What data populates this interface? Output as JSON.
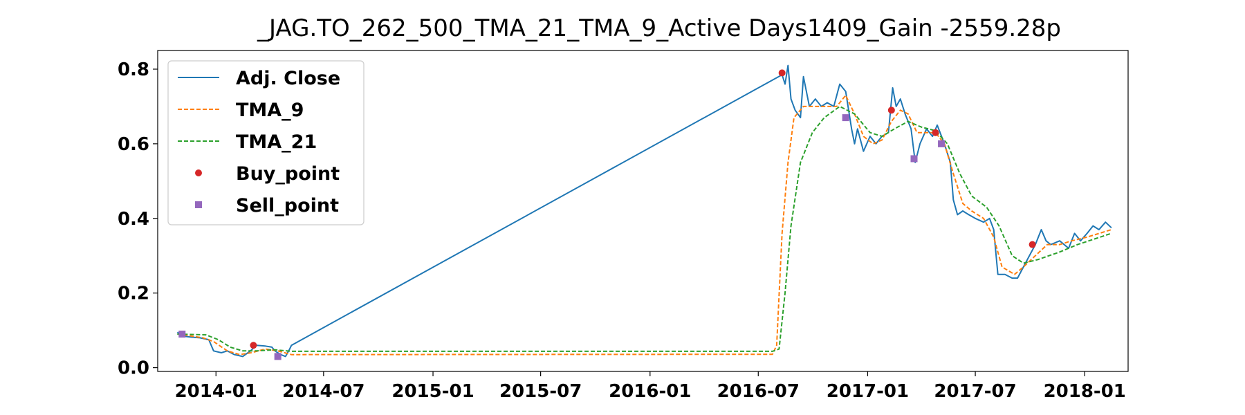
{
  "chart_data": {
    "type": "line",
    "title": "_JAG.TO_262_500_TMA_21_TMA_9_Active Days1409_Gain -2559.28p",
    "xlabel": "",
    "ylabel": "",
    "x_type": "date",
    "xlim": [
      "2013-09-25",
      "2018-03-15"
    ],
    "ylim": [
      -0.01,
      0.85
    ],
    "x_ticks": [
      "2014-01",
      "2014-07",
      "2015-01",
      "2015-07",
      "2016-01",
      "2016-07",
      "2017-01",
      "2017-07",
      "2018-01"
    ],
    "y_ticks": [
      0.0,
      0.2,
      0.4,
      0.6,
      0.8
    ],
    "grid": false,
    "legend_position": "top-left",
    "series": [
      {
        "name": "Adj. Close",
        "style": "solid",
        "color": "#1f77b4",
        "points": [
          [
            "2013-10-28",
            0.095
          ],
          [
            "2013-11-05",
            0.085
          ],
          [
            "2013-11-20",
            0.082
          ],
          [
            "2013-12-05",
            0.08
          ],
          [
            "2013-12-20",
            0.075
          ],
          [
            "2013-12-28",
            0.045
          ],
          [
            "2014-01-10",
            0.04
          ],
          [
            "2014-01-20",
            0.045
          ],
          [
            "2014-02-01",
            0.035
          ],
          [
            "2014-02-15",
            0.03
          ],
          [
            "2014-02-28",
            0.045
          ],
          [
            "2014-03-10",
            0.06
          ],
          [
            "2014-03-25",
            0.058
          ],
          [
            "2014-04-05",
            0.055
          ],
          [
            "2014-04-10",
            0.045
          ],
          [
            "2014-04-20",
            0.035
          ],
          [
            "2014-04-28",
            0.03
          ],
          [
            "2014-05-05",
            0.05
          ],
          [
            "2014-05-08",
            0.06
          ],
          [
            "2016-08-10",
            0.785
          ],
          [
            "2016-08-15",
            0.76
          ],
          [
            "2016-08-20",
            0.81
          ],
          [
            "2016-08-25",
            0.72
          ],
          [
            "2016-09-01",
            0.69
          ],
          [
            "2016-09-10",
            0.67
          ],
          [
            "2016-09-15",
            0.78
          ],
          [
            "2016-09-25",
            0.7
          ],
          [
            "2016-10-05",
            0.72
          ],
          [
            "2016-10-15",
            0.7
          ],
          [
            "2016-10-25",
            0.71
          ],
          [
            "2016-11-05",
            0.7
          ],
          [
            "2016-11-15",
            0.76
          ],
          [
            "2016-11-25",
            0.74
          ],
          [
            "2016-12-05",
            0.64
          ],
          [
            "2016-12-10",
            0.6
          ],
          [
            "2016-12-15",
            0.64
          ],
          [
            "2016-12-25",
            0.58
          ],
          [
            "2017-01-05",
            0.62
          ],
          [
            "2017-01-15",
            0.6
          ],
          [
            "2017-01-25",
            0.62
          ],
          [
            "2017-02-05",
            0.63
          ],
          [
            "2017-02-12",
            0.75
          ],
          [
            "2017-02-18",
            0.7
          ],
          [
            "2017-02-25",
            0.72
          ],
          [
            "2017-03-05",
            0.68
          ],
          [
            "2017-03-15",
            0.64
          ],
          [
            "2017-03-22",
            0.55
          ],
          [
            "2017-03-30",
            0.6
          ],
          [
            "2017-04-10",
            0.64
          ],
          [
            "2017-04-20",
            0.62
          ],
          [
            "2017-04-28",
            0.65
          ],
          [
            "2017-05-10",
            0.6
          ],
          [
            "2017-05-20",
            0.55
          ],
          [
            "2017-05-25",
            0.45
          ],
          [
            "2017-06-01",
            0.41
          ],
          [
            "2017-06-10",
            0.42
          ],
          [
            "2017-06-20",
            0.41
          ],
          [
            "2017-07-01",
            0.4
          ],
          [
            "2017-07-15",
            0.39
          ],
          [
            "2017-07-25",
            0.4
          ],
          [
            "2017-08-01",
            0.37
          ],
          [
            "2017-08-08",
            0.25
          ],
          [
            "2017-08-20",
            0.25
          ],
          [
            "2017-09-01",
            0.24
          ],
          [
            "2017-09-10",
            0.24
          ],
          [
            "2017-09-20",
            0.27
          ],
          [
            "2017-09-30",
            0.3
          ],
          [
            "2017-10-10",
            0.33
          ],
          [
            "2017-10-20",
            0.37
          ],
          [
            "2017-10-28",
            0.34
          ],
          [
            "2017-11-05",
            0.33
          ],
          [
            "2017-11-20",
            0.34
          ],
          [
            "2017-12-05",
            0.32
          ],
          [
            "2017-12-15",
            0.36
          ],
          [
            "2017-12-25",
            0.34
          ],
          [
            "2018-01-05",
            0.36
          ],
          [
            "2018-01-15",
            0.38
          ],
          [
            "2018-01-25",
            0.37
          ],
          [
            "2018-02-05",
            0.39
          ],
          [
            "2018-02-15",
            0.375
          ]
        ]
      },
      {
        "name": "TMA_9",
        "style": "dashed",
        "color": "#ff7f0e",
        "points": [
          [
            "2013-10-28",
            0.09
          ],
          [
            "2013-11-20",
            0.085
          ],
          [
            "2013-12-10",
            0.08
          ],
          [
            "2013-12-28",
            0.07
          ],
          [
            "2014-01-20",
            0.045
          ],
          [
            "2014-02-10",
            0.035
          ],
          [
            "2014-03-01",
            0.04
          ],
          [
            "2014-03-25",
            0.05
          ],
          [
            "2014-04-15",
            0.045
          ],
          [
            "2014-05-08",
            0.035
          ],
          [
            "2016-07-25",
            0.036
          ],
          [
            "2016-08-01",
            0.06
          ],
          [
            "2016-08-10",
            0.36
          ],
          [
            "2016-08-20",
            0.55
          ],
          [
            "2016-08-30",
            0.67
          ],
          [
            "2016-09-15",
            0.7
          ],
          [
            "2016-10-05",
            0.7
          ],
          [
            "2016-10-25",
            0.7
          ],
          [
            "2016-11-10",
            0.7
          ],
          [
            "2016-11-25",
            0.73
          ],
          [
            "2016-12-10",
            0.68
          ],
          [
            "2016-12-25",
            0.62
          ],
          [
            "2017-01-10",
            0.6
          ],
          [
            "2017-01-25",
            0.61
          ],
          [
            "2017-02-10",
            0.66
          ],
          [
            "2017-02-25",
            0.69
          ],
          [
            "2017-03-10",
            0.68
          ],
          [
            "2017-03-25",
            0.63
          ],
          [
            "2017-04-10",
            0.63
          ],
          [
            "2017-04-25",
            0.63
          ],
          [
            "2017-05-10",
            0.6
          ],
          [
            "2017-05-25",
            0.52
          ],
          [
            "2017-06-10",
            0.44
          ],
          [
            "2017-06-25",
            0.42
          ],
          [
            "2017-07-15",
            0.4
          ],
          [
            "2017-08-01",
            0.35
          ],
          [
            "2017-08-15",
            0.27
          ],
          [
            "2017-09-05",
            0.25
          ],
          [
            "2017-09-20",
            0.27
          ],
          [
            "2017-10-10",
            0.3
          ],
          [
            "2017-10-30",
            0.33
          ],
          [
            "2017-11-20",
            0.33
          ],
          [
            "2017-12-10",
            0.34
          ],
          [
            "2018-01-05",
            0.35
          ],
          [
            "2018-02-15",
            0.37
          ]
        ]
      },
      {
        "name": "TMA_21",
        "style": "dashed",
        "color": "#2ca02c",
        "points": [
          [
            "2013-10-28",
            0.09
          ],
          [
            "2013-12-15",
            0.088
          ],
          [
            "2014-01-05",
            0.075
          ],
          [
            "2014-01-25",
            0.055
          ],
          [
            "2014-02-15",
            0.045
          ],
          [
            "2014-03-10",
            0.045
          ],
          [
            "2014-04-10",
            0.048
          ],
          [
            "2014-05-08",
            0.044
          ],
          [
            "2016-07-25",
            0.044
          ],
          [
            "2016-08-05",
            0.05
          ],
          [
            "2016-08-15",
            0.2
          ],
          [
            "2016-08-25",
            0.38
          ],
          [
            "2016-09-10",
            0.55
          ],
          [
            "2016-09-30",
            0.63
          ],
          [
            "2016-10-20",
            0.67
          ],
          [
            "2016-11-15",
            0.7
          ],
          [
            "2016-12-10",
            0.68
          ],
          [
            "2017-01-05",
            0.63
          ],
          [
            "2017-01-25",
            0.62
          ],
          [
            "2017-02-15",
            0.64
          ],
          [
            "2017-03-10",
            0.66
          ],
          [
            "2017-04-01",
            0.645
          ],
          [
            "2017-04-25",
            0.635
          ],
          [
            "2017-05-15",
            0.6
          ],
          [
            "2017-06-05",
            0.52
          ],
          [
            "2017-06-25",
            0.46
          ],
          [
            "2017-07-20",
            0.43
          ],
          [
            "2017-08-10",
            0.38
          ],
          [
            "2017-09-01",
            0.3
          ],
          [
            "2017-09-20",
            0.28
          ],
          [
            "2017-10-15",
            0.29
          ],
          [
            "2017-11-20",
            0.31
          ],
          [
            "2017-12-20",
            0.33
          ],
          [
            "2018-02-15",
            0.36
          ]
        ]
      },
      {
        "name": "Buy_point",
        "style": "marker-circle",
        "color": "#d62728",
        "points": [
          [
            "2014-03-05",
            0.06
          ],
          [
            "2016-08-10",
            0.79
          ],
          [
            "2017-02-10",
            0.69
          ],
          [
            "2017-04-25",
            0.63
          ],
          [
            "2017-10-05",
            0.33
          ]
        ]
      },
      {
        "name": "Sell_point",
        "style": "marker-square",
        "color": "#9467bd",
        "points": [
          [
            "2013-11-05",
            0.09
          ],
          [
            "2014-04-15",
            0.03
          ],
          [
            "2016-11-25",
            0.67
          ],
          [
            "2017-03-20",
            0.56
          ],
          [
            "2017-05-05",
            0.6
          ]
        ]
      }
    ]
  }
}
